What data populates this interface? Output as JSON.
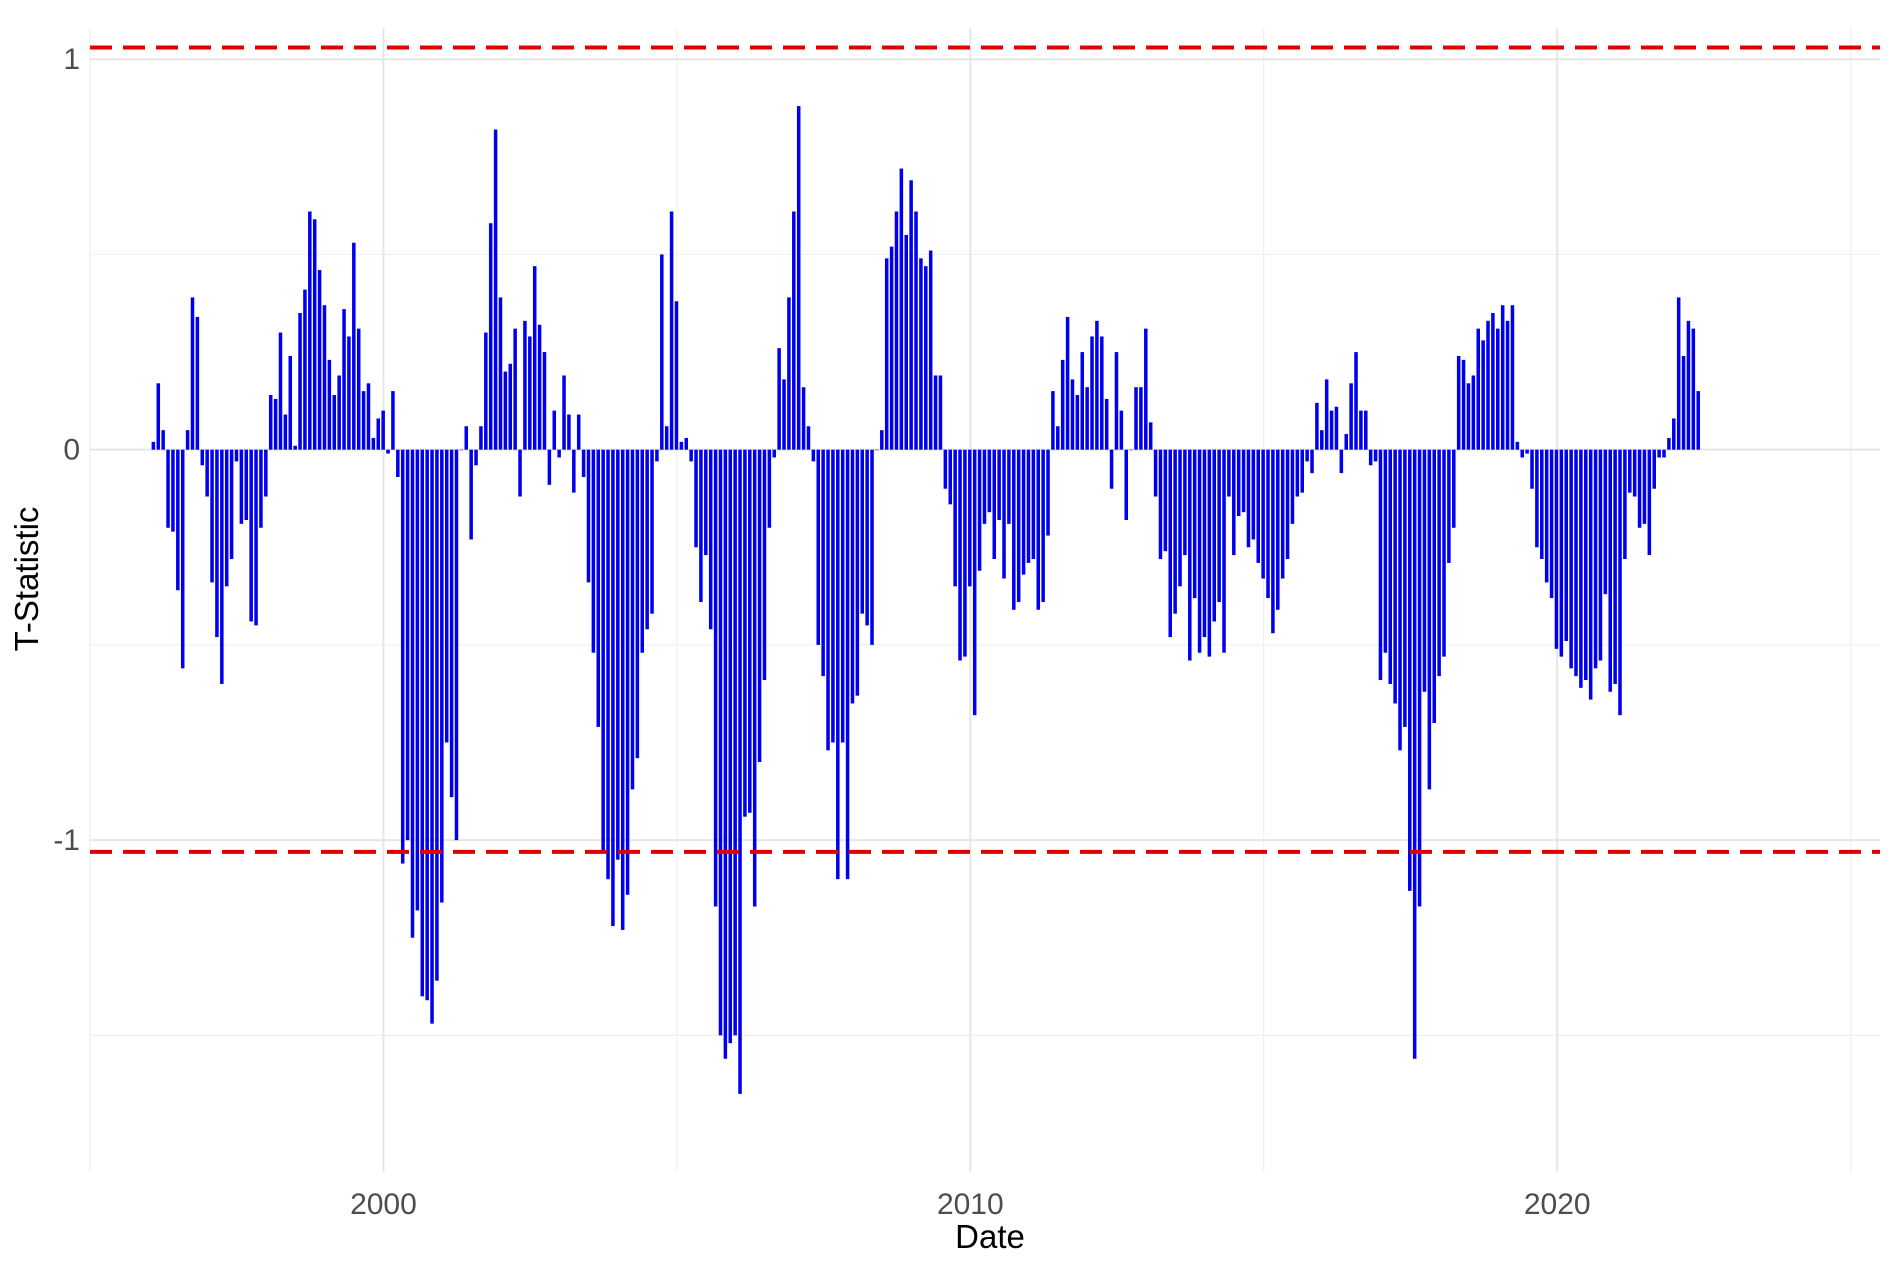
{
  "chart_data": {
    "type": "bar",
    "xlabel": "Date",
    "ylabel": "T-Statistic",
    "xlim": [
      1995,
      2025.5
    ],
    "ylim": [
      -1.85,
      1.08
    ],
    "x_ticks": [
      {
        "value": 2000,
        "label": "2000"
      },
      {
        "value": 2010,
        "label": "2010"
      },
      {
        "value": 2020,
        "label": "2020"
      }
    ],
    "y_ticks": [
      {
        "value": 1,
        "label": "1"
      },
      {
        "value": 0,
        "label": "0"
      },
      {
        "value": -1,
        "label": "-1"
      }
    ],
    "x_minor_grid": [
      1995,
      2005,
      2015,
      2025
    ],
    "y_minor_grid": [
      0.5,
      -0.5,
      -1.5
    ],
    "grid": true,
    "reference_lines": [
      {
        "y": 1.03,
        "style": "dashed",
        "color": "#e00000"
      },
      {
        "y": -1.03,
        "style": "dashed",
        "color": "#e00000"
      }
    ],
    "bar_color": "#0000ee",
    "x_start": 1996.08,
    "x_step": 0.0833,
    "values": [
      0.02,
      0.17,
      0.05,
      -0.2,
      -0.21,
      -0.36,
      -0.56,
      0.05,
      0.39,
      0.34,
      -0.04,
      -0.12,
      -0.34,
      -0.48,
      -0.6,
      -0.35,
      -0.28,
      -0.03,
      -0.19,
      -0.18,
      -0.44,
      -0.45,
      -0.2,
      -0.12,
      0.14,
      0.13,
      0.3,
      0.09,
      0.24,
      0.01,
      0.35,
      0.41,
      0.61,
      0.59,
      0.46,
      0.37,
      0.23,
      0.14,
      0.19,
      0.36,
      0.29,
      0.53,
      0.31,
      0.15,
      0.17,
      0.03,
      0.08,
      0.1,
      -0.01,
      0.15,
      -0.07,
      -1.06,
      -1.0,
      -1.25,
      -1.18,
      -1.4,
      -1.41,
      -1.47,
      -1.36,
      -1.16,
      -0.75,
      -0.89,
      -1.0,
      0.0,
      0.06,
      -0.23,
      -0.04,
      0.06,
      0.3,
      0.58,
      0.82,
      0.39,
      0.2,
      0.22,
      0.31,
      -0.12,
      0.33,
      0.29,
      0.47,
      0.32,
      0.25,
      -0.09,
      0.1,
      -0.02,
      0.19,
      0.09,
      -0.11,
      0.09,
      -0.07,
      -0.34,
      -0.52,
      -0.71,
      -1.03,
      -1.1,
      -1.22,
      -1.05,
      -1.23,
      -1.14,
      -0.87,
      -0.79,
      -0.52,
      -0.46,
      -0.42,
      -0.03,
      0.5,
      0.06,
      0.61,
      0.38,
      0.02,
      0.03,
      -0.03,
      -0.25,
      -0.39,
      -0.27,
      -0.46,
      -1.17,
      -1.5,
      -1.56,
      -1.52,
      -1.5,
      -1.65,
      -0.94,
      -0.93,
      -1.17,
      -0.8,
      -0.59,
      -0.2,
      -0.02,
      0.26,
      0.18,
      0.39,
      0.61,
      0.88,
      0.16,
      0.06,
      -0.03,
      -0.5,
      -0.58,
      -0.77,
      -0.75,
      -1.1,
      -0.75,
      -1.1,
      -0.65,
      -0.63,
      -0.42,
      -0.45,
      -0.5,
      0.0,
      0.05,
      0.49,
      0.52,
      0.61,
      0.72,
      0.55,
      0.69,
      0.61,
      0.49,
      0.47,
      0.51,
      0.19,
      0.19,
      -0.1,
      -0.14,
      -0.35,
      -0.54,
      -0.53,
      -0.35,
      -0.68,
      -0.31,
      -0.19,
      -0.16,
      -0.28,
      -0.18,
      -0.33,
      -0.19,
      -0.41,
      -0.39,
      -0.32,
      -0.29,
      -0.28,
      -0.41,
      -0.39,
      -0.22,
      0.15,
      0.06,
      0.23,
      0.34,
      0.18,
      0.14,
      0.25,
      0.16,
      0.29,
      0.33,
      0.29,
      0.13,
      -0.1,
      0.25,
      0.1,
      -0.18,
      0.0,
      0.16,
      0.16,
      0.31,
      0.07,
      -0.12,
      -0.28,
      -0.26,
      -0.48,
      -0.42,
      -0.35,
      -0.27,
      -0.54,
      -0.38,
      -0.52,
      -0.48,
      -0.53,
      -0.44,
      -0.39,
      -0.52,
      -0.12,
      -0.27,
      -0.17,
      -0.16,
      -0.25,
      -0.23,
      -0.29,
      -0.33,
      -0.38,
      -0.47,
      -0.41,
      -0.33,
      -0.28,
      -0.19,
      -0.12,
      -0.11,
      -0.03,
      -0.06,
      0.12,
      0.05,
      0.18,
      0.1,
      0.11,
      -0.06,
      0.04,
      0.17,
      0.25,
      0.1,
      0.1,
      -0.04,
      -0.03,
      -0.59,
      -0.52,
      -0.6,
      -0.65,
      -0.77,
      -0.71,
      -1.13,
      -1.56,
      -1.17,
      -0.62,
      -0.87,
      -0.7,
      -0.58,
      -0.53,
      -0.29,
      -0.2,
      0.24,
      0.23,
      0.17,
      0.19,
      0.31,
      0.28,
      0.33,
      0.35,
      0.31,
      0.37,
      0.33,
      0.37,
      0.02,
      -0.02,
      -0.01,
      -0.1,
      -0.25,
      -0.28,
      -0.34,
      -0.38,
      -0.51,
      -0.53,
      -0.49,
      -0.56,
      -0.58,
      -0.61,
      -0.59,
      -0.64,
      -0.56,
      -0.54,
      -0.37,
      -0.62,
      -0.6,
      -0.68,
      -0.28,
      -0.11,
      -0.12,
      -0.2,
      -0.19,
      -0.27,
      -0.1,
      -0.02,
      -0.02,
      0.03,
      0.08,
      0.39,
      0.24,
      0.33,
      0.31,
      0.15
    ]
  }
}
